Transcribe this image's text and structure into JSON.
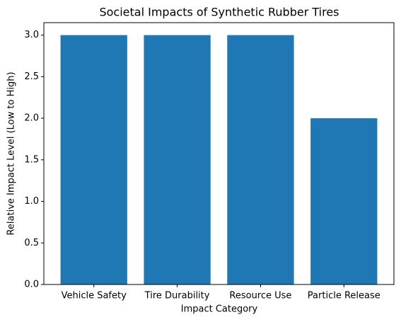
{
  "chart_data": {
    "type": "bar",
    "title": "Societal Impacts of Synthetic Rubber Tires",
    "x_label": "Impact Category",
    "y_label": "Relative Impact Level (Low to High)",
    "categories": [
      "Vehicle Safety",
      "Tire Durability",
      "Resource Use",
      "Particle Release"
    ],
    "values": [
      3,
      3,
      3,
      2
    ],
    "color": "#1f77b4",
    "ylim": [
      0,
      3.15
    ],
    "yticks": [
      {
        "value": 0,
        "label": "0.0"
      },
      0.5,
      {
        "value": 1,
        "label": "1.0"
      },
      1.5,
      {
        "value": 2,
        "label": "2.0"
      },
      2.5,
      {
        "value": 3,
        "label": "3.0"
      }
    ],
    "grid": false
  }
}
